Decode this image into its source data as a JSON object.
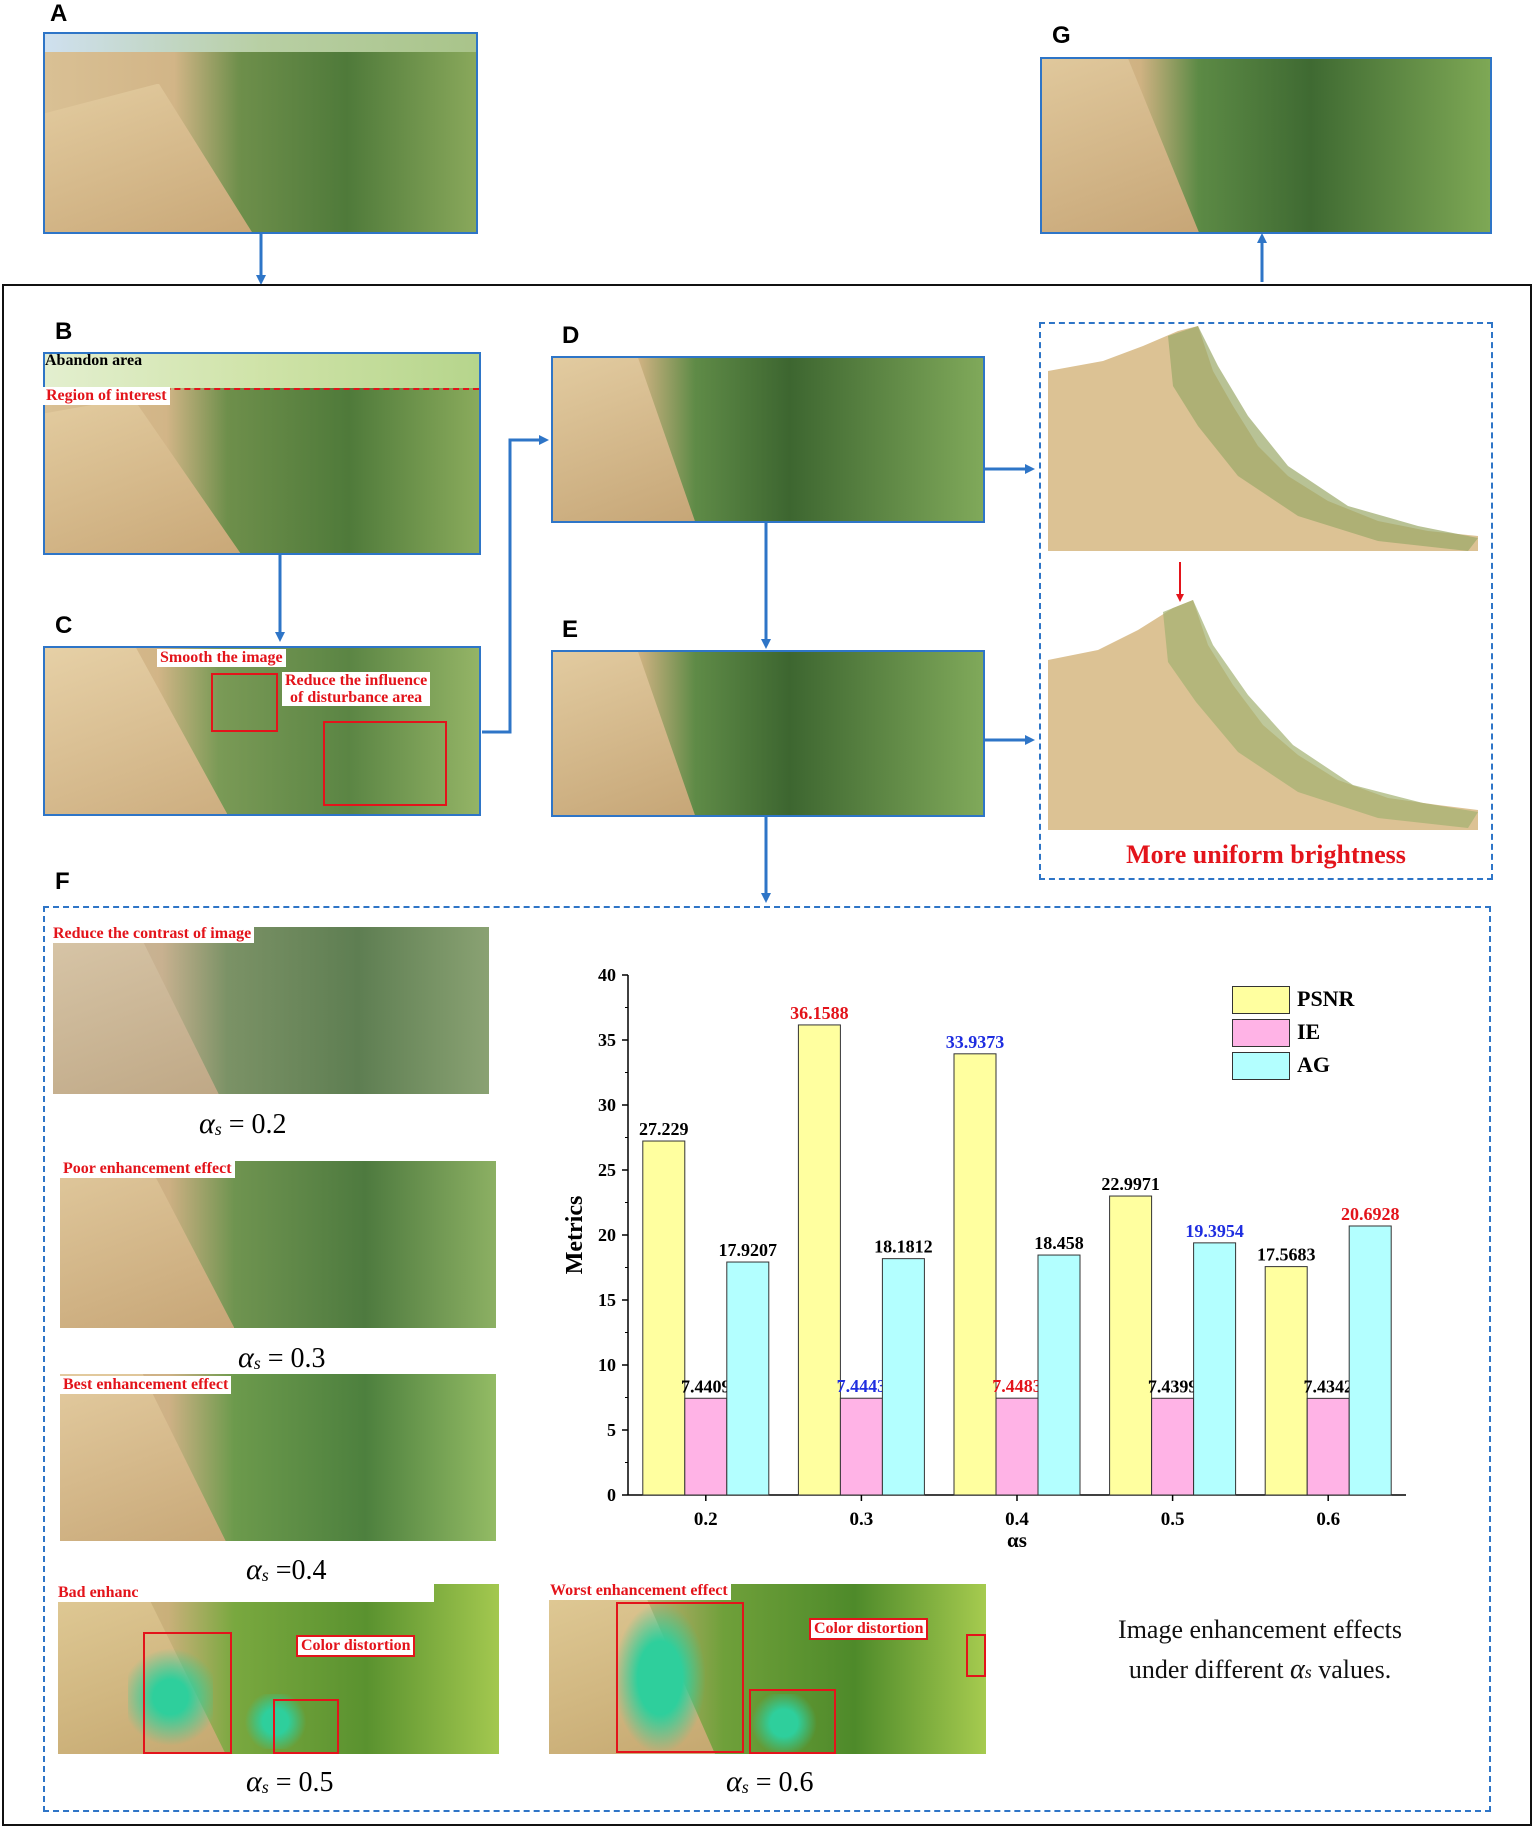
{
  "panels": {
    "A": "A",
    "B": "B",
    "C": "C",
    "D": "D",
    "E": "E",
    "F": "F",
    "G": "G"
  },
  "panel_b": {
    "abandon": "Abandon area",
    "roi": "Region of interest"
  },
  "panel_c": {
    "smooth": "Smooth the image",
    "reduce_line1": "Reduce the influence",
    "reduce_line2": "of  disturbance area"
  },
  "brightness_label": "More uniform brightness",
  "panel_f": {
    "items": [
      {
        "label": "Reduce the contrast of image",
        "alpha_value": "= 0.2"
      },
      {
        "label": "Poor enhancement effect",
        "alpha_value": "= 0.3"
      },
      {
        "label": "Best enhancement effect",
        "alpha_value": "=0.4"
      },
      {
        "label": "Bad enhanc",
        "alpha_value": "= 0.5",
        "distortion": "Color distortion"
      },
      {
        "label": "Worst enhancement effect",
        "alpha_value": "= 0.6",
        "distortion": "Color distortion"
      }
    ],
    "alpha_symbol": "α",
    "alpha_sub": "s",
    "caption_line1": "Image enhancement effects",
    "caption_line2_pre": "under different",
    "caption_line2_post": "values."
  },
  "colors": {
    "frame_blue": "#2e75c7",
    "label_red": "#e3141b",
    "highlight_blue": "#1f2ee0",
    "psnr": "#ffff9f",
    "ie": "#ffb3e6",
    "ag": "#b3ffff"
  },
  "chart_data": {
    "type": "bar",
    "categories": [
      "0.2",
      "0.3",
      "0.4",
      "0.5",
      "0.6"
    ],
    "series": [
      {
        "name": "PSNR",
        "values": [
          27.229,
          36.1588,
          33.9373,
          22.9971,
          17.5683
        ],
        "labels": [
          "27.229",
          "36.1588",
          "33.9373",
          "22.9971",
          "17.5683"
        ],
        "label_colors": [
          "#000000",
          "#e3141b",
          "#1f2ee0",
          "#000000",
          "#000000"
        ]
      },
      {
        "name": "IE",
        "values": [
          7.4409,
          7.4443,
          7.4483,
          7.4399,
          7.4342
        ],
        "labels": [
          "7.4409",
          "7.4443",
          "7.4483",
          "7.4399",
          "7.4342"
        ],
        "label_colors": [
          "#000000",
          "#1f2ee0",
          "#e3141b",
          "#000000",
          "#000000"
        ]
      },
      {
        "name": "AG",
        "values": [
          17.9207,
          18.1812,
          18.458,
          19.3954,
          20.6928
        ],
        "labels": [
          "17.9207",
          "18.1812",
          "18.458",
          "19.3954",
          "20.6928"
        ],
        "label_colors": [
          "#000000",
          "#000000",
          "#000000",
          "#1f2ee0",
          "#e3141b"
        ]
      }
    ],
    "xlabel": "αs",
    "ylabel": "Metrics",
    "ylim": [
      0,
      40
    ],
    "yticks": [
      "0",
      "5",
      "10",
      "15",
      "20",
      "25",
      "30",
      "35",
      "40"
    ],
    "legend_position": "top-right",
    "grid": false
  }
}
